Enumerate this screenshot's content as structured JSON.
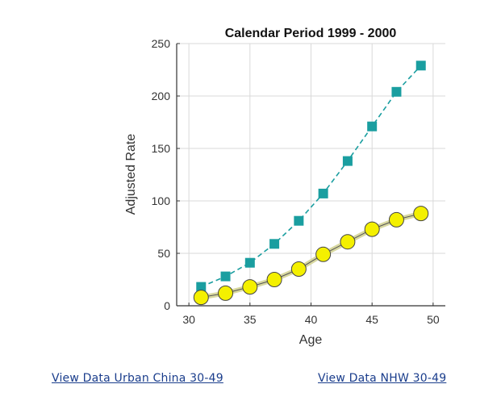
{
  "chart_data": {
    "type": "line",
    "title": "Calendar Period 1999 - 2000",
    "xlabel": "Age",
    "ylabel": "Adjusted Rate",
    "xlim": [
      29,
      51
    ],
    "ylim": [
      0,
      250
    ],
    "xticks": [
      30,
      35,
      40,
      45,
      50
    ],
    "yticks": [
      0,
      50,
      100,
      150,
      200,
      250
    ],
    "grid": true,
    "x": [
      31,
      33,
      35,
      37,
      39,
      41,
      43,
      45,
      47,
      49
    ],
    "series": [
      {
        "values": [
          18,
          28,
          41,
          59,
          81,
          107,
          138,
          171,
          204,
          229
        ],
        "color": "#1a9ea0",
        "marker": "square",
        "line_style": "dashed"
      },
      {
        "values": [
          8,
          12,
          18,
          25,
          35,
          49,
          61,
          73,
          82,
          88
        ],
        "color": "#f4f000",
        "marker": "circle",
        "line_style": "solid"
      }
    ]
  },
  "links": {
    "left": "View Data  Urban China 30-49",
    "right": "View Data  NHW 30-49"
  },
  "colors": {
    "link": "#1a3d8c",
    "grid": "#d9d9d9",
    "axis": "#333333"
  }
}
